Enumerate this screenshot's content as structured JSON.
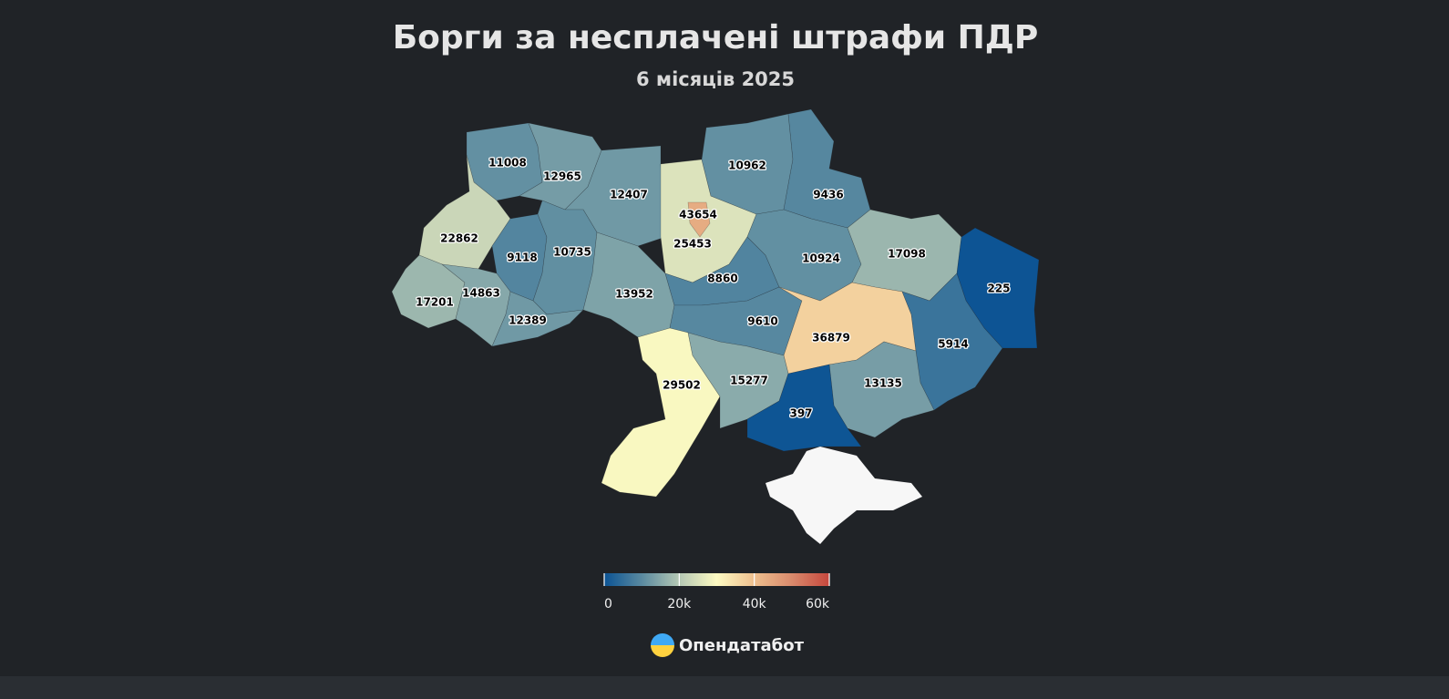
{
  "chart_data": {
    "type": "choropleth",
    "title": "Борги за несплачені штрафи ПДР",
    "subtitle": "6 місяців 2025",
    "values": [
      11008,
      12965,
      12407,
      43654,
      25453,
      10962,
      9436,
      22862,
      9118,
      10735,
      17201,
      14863,
      12389,
      13952,
      8860,
      10924,
      17098,
      225,
      9610,
      36879,
      5914,
      29502,
      15277,
      13135,
      397
    ],
    "colorscale": {
      "colors": [
        "#0b5394",
        "#5a8aa0",
        "#b5c8b4",
        "#fdfac2",
        "#eebf8e",
        "#d98a6c",
        "#c6473d"
      ],
      "lim": [
        0,
        60000
      ],
      "ticks": [
        0,
        {
          "value": 20000,
          "label": "20k"
        },
        {
          "value": 40000,
          "label": "40k"
        },
        {
          "value": 60000,
          "label": "60k"
        }
      ]
    }
  },
  "brand": "Опендатабот"
}
